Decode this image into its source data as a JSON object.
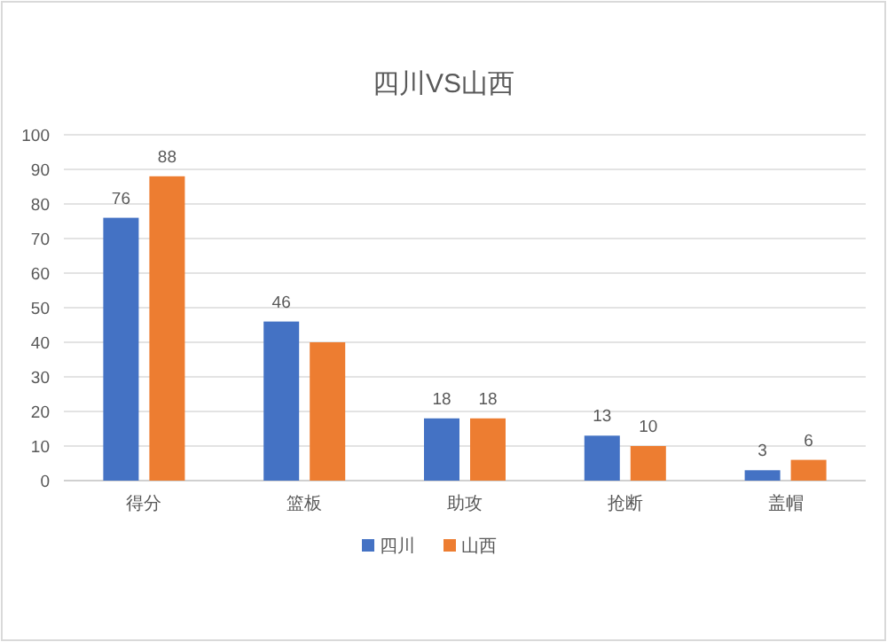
{
  "chart_data": {
    "type": "bar",
    "title": "四川VS山西",
    "categories": [
      "得分",
      "篮板",
      "助攻",
      "抢断",
      "盖帽"
    ],
    "series": [
      {
        "name": "四川",
        "color": "#4472c4",
        "values": [
          76,
          46,
          18,
          13,
          3
        ],
        "value_labels": [
          "76",
          "46",
          "18",
          "13",
          "3"
        ]
      },
      {
        "name": "山西",
        "color": "#ed7d31",
        "values": [
          88,
          40,
          18,
          10,
          6
        ],
        "value_labels": [
          "88",
          null,
          "18",
          "10",
          "6"
        ]
      }
    ],
    "ylim": [
      0,
      100
    ],
    "yticks": [
      0,
      10,
      20,
      30,
      40,
      50,
      60,
      70,
      80,
      90,
      100
    ],
    "grid": "y",
    "legend": "bottom"
  }
}
